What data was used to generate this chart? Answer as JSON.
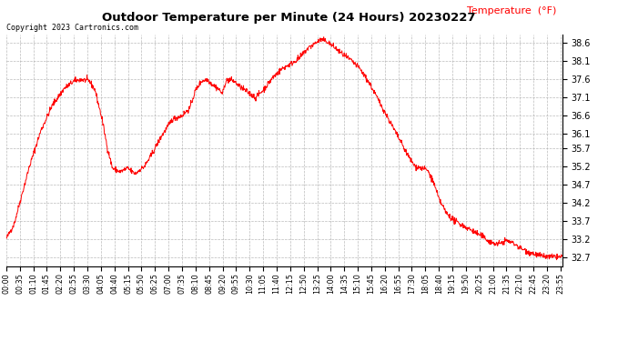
{
  "title": "Outdoor Temperature per Minute (24 Hours) 20230227",
  "copyright_text": "Copyright 2023 Cartronics.com",
  "legend_label": "Temperature  (°F)",
  "line_color": "red",
  "background_color": "white",
  "grid_color": "#aaaaaa",
  "yticks": [
    32.7,
    33.2,
    33.7,
    34.2,
    34.7,
    35.2,
    35.7,
    36.1,
    36.6,
    37.1,
    37.6,
    38.1,
    38.6
  ],
  "ylim": [
    32.45,
    38.85
  ],
  "total_minutes": 1440,
  "key_points": [
    [
      0,
      33.2
    ],
    [
      20,
      33.6
    ],
    [
      40,
      34.4
    ],
    [
      60,
      35.2
    ],
    [
      90,
      36.2
    ],
    [
      120,
      36.9
    ],
    [
      150,
      37.35
    ],
    [
      175,
      37.55
    ],
    [
      195,
      37.6
    ],
    [
      215,
      37.55
    ],
    [
      230,
      37.3
    ],
    [
      248,
      36.5
    ],
    [
      262,
      35.7
    ],
    [
      275,
      35.15
    ],
    [
      285,
      35.1
    ],
    [
      295,
      35.05
    ],
    [
      305,
      35.1
    ],
    [
      315,
      35.15
    ],
    [
      325,
      35.05
    ],
    [
      335,
      35.0
    ],
    [
      345,
      35.1
    ],
    [
      358,
      35.2
    ],
    [
      375,
      35.5
    ],
    [
      400,
      36.0
    ],
    [
      430,
      36.5
    ],
    [
      455,
      36.6
    ],
    [
      475,
      36.8
    ],
    [
      490,
      37.3
    ],
    [
      505,
      37.55
    ],
    [
      520,
      37.6
    ],
    [
      535,
      37.45
    ],
    [
      548,
      37.35
    ],
    [
      560,
      37.2
    ],
    [
      568,
      37.55
    ],
    [
      578,
      37.6
    ],
    [
      590,
      37.55
    ],
    [
      605,
      37.4
    ],
    [
      625,
      37.25
    ],
    [
      645,
      37.1
    ],
    [
      665,
      37.3
    ],
    [
      690,
      37.65
    ],
    [
      715,
      37.9
    ],
    [
      740,
      38.05
    ],
    [
      760,
      38.2
    ],
    [
      780,
      38.45
    ],
    [
      800,
      38.6
    ],
    [
      815,
      38.7
    ],
    [
      830,
      38.65
    ],
    [
      848,
      38.5
    ],
    [
      870,
      38.3
    ],
    [
      895,
      38.1
    ],
    [
      915,
      37.9
    ],
    [
      940,
      37.5
    ],
    [
      960,
      37.1
    ],
    [
      980,
      36.7
    ],
    [
      1000,
      36.3
    ],
    [
      1020,
      35.9
    ],
    [
      1040,
      35.5
    ],
    [
      1058,
      35.2
    ],
    [
      1075,
      35.15
    ],
    [
      1090,
      35.1
    ],
    [
      1105,
      34.8
    ],
    [
      1120,
      34.3
    ],
    [
      1140,
      33.9
    ],
    [
      1160,
      33.7
    ],
    [
      1185,
      33.55
    ],
    [
      1210,
      33.4
    ],
    [
      1235,
      33.25
    ],
    [
      1255,
      33.1
    ],
    [
      1272,
      33.05
    ],
    [
      1285,
      33.1
    ],
    [
      1295,
      33.15
    ],
    [
      1308,
      33.1
    ],
    [
      1318,
      33.05
    ],
    [
      1330,
      32.95
    ],
    [
      1350,
      32.85
    ],
    [
      1375,
      32.75
    ],
    [
      1400,
      32.7
    ],
    [
      1420,
      32.7
    ],
    [
      1439,
      32.7
    ]
  ]
}
